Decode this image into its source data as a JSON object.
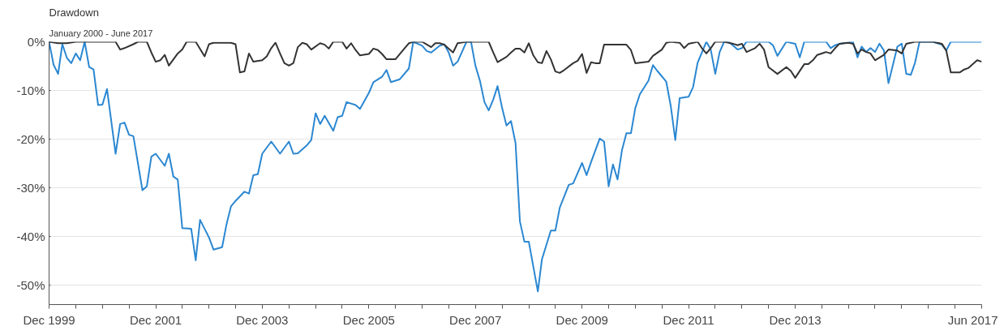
{
  "chart_data": {
    "type": "line",
    "title": "Drawdown",
    "subtitle": "January 2000 - June 2017",
    "xlim": [
      "1999-12",
      "2017-06"
    ],
    "xticks": [
      {
        "value": "1999-12",
        "label": "Dec 1999"
      },
      {
        "value": "2000-06",
        "label": null
      },
      {
        "value": "2000-12",
        "label": null
      },
      {
        "value": "2001-06",
        "label": null
      },
      {
        "value": "2001-12",
        "label": "Dec 2001"
      },
      {
        "value": "2002-06",
        "label": null
      },
      {
        "value": "2002-12",
        "label": null
      },
      {
        "value": "2003-06",
        "label": null
      },
      {
        "value": "2003-12",
        "label": "Dec 2003"
      },
      {
        "value": "2004-06",
        "label": null
      },
      {
        "value": "2004-12",
        "label": null
      },
      {
        "value": "2005-06",
        "label": null
      },
      {
        "value": "2005-12",
        "label": "Dec 2005"
      },
      {
        "value": "2006-06",
        "label": null
      },
      {
        "value": "2006-12",
        "label": null
      },
      {
        "value": "2007-06",
        "label": null
      },
      {
        "value": "2007-12",
        "label": "Dec 2007"
      },
      {
        "value": "2008-06",
        "label": null
      },
      {
        "value": "2008-12",
        "label": null
      },
      {
        "value": "2009-06",
        "label": null
      },
      {
        "value": "2009-12",
        "label": "Dec 2009"
      },
      {
        "value": "2010-06",
        "label": null
      },
      {
        "value": "2010-12",
        "label": null
      },
      {
        "value": "2011-06",
        "label": null
      },
      {
        "value": "2011-12",
        "label": "Dec 2011"
      },
      {
        "value": "2012-06",
        "label": null
      },
      {
        "value": "2012-12",
        "label": null
      },
      {
        "value": "2013-06",
        "label": null
      },
      {
        "value": "2013-12",
        "label": "Dec 2013"
      },
      {
        "value": "2014-06",
        "label": null
      },
      {
        "value": "2014-12",
        "label": null
      },
      {
        "value": "2015-06",
        "label": null
      },
      {
        "value": "2015-12",
        "label": null
      },
      {
        "value": "2016-06",
        "label": null
      },
      {
        "value": "2016-12",
        "label": null
      },
      {
        "value": "2017-06",
        "label": "Jun 2017"
      }
    ],
    "ylim": [
      -54,
      0
    ],
    "yticks": [
      {
        "value": 0,
        "label": "0%"
      },
      {
        "value": -10,
        "label": "-10%"
      },
      {
        "value": -20,
        "label": "-20%"
      },
      {
        "value": -30,
        "label": "-30%"
      },
      {
        "value": -40,
        "label": "-40%"
      },
      {
        "value": -50,
        "label": "-50%"
      }
    ],
    "grid": "y",
    "marker": "none",
    "line_style": "solid",
    "series": [
      {
        "color": "#2b87d1",
        "x": [
          "1999-12",
          "2000-01",
          "2000-02",
          "2000-03",
          "2000-04",
          "2000-05",
          "2000-06",
          "2000-07",
          "2000-08",
          "2000-09",
          "2000-10",
          "2000-11",
          "2000-12",
          "2001-01",
          "2001-03",
          "2001-04",
          "2001-05",
          "2001-06",
          "2001-07",
          "2001-09",
          "2001-10",
          "2001-11",
          "2001-12",
          "2002-02",
          "2002-03",
          "2002-04",
          "2002-05",
          "2002-06",
          "2002-08",
          "2002-09",
          "2002-10",
          "2002-12",
          "2003-01",
          "2003-03",
          "2003-04",
          "2003-05",
          "2003-06",
          "2003-08",
          "2003-09",
          "2003-10",
          "2003-11",
          "2003-12",
          "2004-02",
          "2004-04",
          "2004-06",
          "2004-07",
          "2004-08",
          "2004-10",
          "2004-11",
          "2004-12",
          "2005-01",
          "2005-02",
          "2005-04",
          "2005-05",
          "2005-06",
          "2005-07",
          "2005-09",
          "2005-10",
          "2005-12",
          "2006-01",
          "2006-03",
          "2006-04",
          "2006-05",
          "2006-07",
          "2006-09",
          "2006-10",
          "2006-12",
          "2007-01",
          "2007-02",
          "2007-04",
          "2007-05",
          "2007-06",
          "2007-07",
          "2007-08",
          "2007-10",
          "2007-11",
          "2007-12",
          "2008-01",
          "2008-02",
          "2008-03",
          "2008-04",
          "2008-05",
          "2008-06",
          "2008-07",
          "2008-08",
          "2008-09",
          "2008-10",
          "2008-11",
          "2008-12",
          "2009-02",
          "2009-03",
          "2009-05",
          "2009-06",
          "2009-07",
          "2009-09",
          "2009-10",
          "2009-12",
          "2010-01",
          "2010-02",
          "2010-04",
          "2010-05",
          "2010-06",
          "2010-07",
          "2010-08",
          "2010-09",
          "2010-10",
          "2010-11",
          "2010-12",
          "2011-01",
          "2011-03",
          "2011-04",
          "2011-05",
          "2011-07",
          "2011-08",
          "2011-09",
          "2011-10",
          "2011-12",
          "2012-01",
          "2012-02",
          "2012-04",
          "2012-05",
          "2012-06",
          "2012-07",
          "2012-08",
          "2012-09",
          "2012-11",
          "2012-12",
          "2013-01",
          "2013-03",
          "2013-05",
          "2013-06",
          "2013-07",
          "2013-08",
          "2013-10",
          "2013-12",
          "2014-01",
          "2014-02",
          "2014-07",
          "2014-08",
          "2014-09",
          "2014-10",
          "2015-01",
          "2015-02",
          "2015-03",
          "2015-04",
          "2015-05",
          "2015-06",
          "2015-07",
          "2015-08",
          "2015-09",
          "2015-11",
          "2015-12",
          "2016-01",
          "2016-02",
          "2016-03",
          "2016-04",
          "2016-07",
          "2016-09",
          "2016-10",
          "2016-11",
          "2017-06"
        ],
        "values": [
          0,
          -4.7,
          -6.6,
          -0.5,
          -3.3,
          -4.4,
          -2.4,
          -3.8,
          0,
          -5.2,
          -5.7,
          -13.0,
          -12.9,
          -9.7,
          -23.0,
          -16.9,
          -16.6,
          -19.1,
          -19.4,
          -30.5,
          -29.7,
          -23.6,
          -23.0,
          -25.5,
          -23.0,
          -27.7,
          -28.3,
          -38.3,
          -38.4,
          -44.9,
          -36.6,
          -40.2,
          -42.7,
          -42.2,
          -37.4,
          -33.8,
          -32.7,
          -30.8,
          -31.2,
          -27.4,
          -27.2,
          -23.0,
          -20.5,
          -23.0,
          -20.5,
          -23.0,
          -22.9,
          -21.3,
          -20.2,
          -14.7,
          -16.9,
          -15.2,
          -18.3,
          -15.5,
          -15.2,
          -12.4,
          -13.0,
          -13.8,
          -10.5,
          -8.3,
          -7.2,
          -5.8,
          -8.3,
          -7.7,
          -5.5,
          0,
          -0.8,
          -1.9,
          -2.2,
          -0.8,
          -0.5,
          -2.2,
          -4.9,
          -4.1,
          0,
          0,
          -4.9,
          -8.0,
          -12.4,
          -14.1,
          -11.9,
          -9.1,
          -13.6,
          -17.2,
          -16.3,
          -20.8,
          -36.9,
          -41.1,
          -41.1,
          -51.3,
          -44.7,
          -38.8,
          -38.8,
          -34.1,
          -29.4,
          -29.1,
          -24.9,
          -27.4,
          -24.7,
          -19.9,
          -20.5,
          -29.7,
          -25.2,
          -28.3,
          -22.2,
          -18.8,
          -18.8,
          -13.6,
          -10.8,
          -8.0,
          -4.8,
          -6.0,
          -8.2,
          -13.2,
          -20.2,
          -11.6,
          -11.3,
          -9.3,
          -4.3,
          0,
          -1.6,
          -6.6,
          -2.1,
          0,
          0,
          -1.6,
          -1.3,
          0,
          0,
          0,
          0,
          -0.7,
          -2.9,
          0,
          -0.4,
          -3.2,
          0,
          0,
          -1.3,
          -0.7,
          -0.4,
          0,
          -3.2,
          -1.0,
          -2.1,
          -1.3,
          -2.1,
          -0.4,
          -1.8,
          -8.5,
          -1.0,
          -0.4,
          -6.6,
          -6.8,
          -4.3,
          0,
          0,
          -0.6,
          -1.8,
          0,
          0
        ]
      },
      {
        "color": "#333333",
        "x": [
          "1999-12",
          "2000-02",
          "2000-04",
          "2000-06",
          "2001-03",
          "2001-04",
          "2001-05",
          "2001-07",
          "2001-08",
          "2001-10",
          "2001-11",
          "2001-12",
          "2002-01",
          "2002-02",
          "2002-03",
          "2002-05",
          "2002-06",
          "2002-07",
          "2002-09",
          "2002-11",
          "2002-12",
          "2003-01",
          "2003-05",
          "2003-06",
          "2003-07",
          "2003-08",
          "2003-09",
          "2003-10",
          "2003-12",
          "2004-01",
          "2004-02",
          "2004-03",
          "2004-04",
          "2004-05",
          "2004-06",
          "2004-07",
          "2004-08",
          "2004-09",
          "2004-10",
          "2004-11",
          "2005-01",
          "2005-02",
          "2005-03",
          "2005-04",
          "2005-06",
          "2005-07",
          "2005-08",
          "2005-09",
          "2005-10",
          "2005-12",
          "2006-01",
          "2006-02",
          "2006-03",
          "2006-04",
          "2006-06",
          "2006-08",
          "2006-09",
          "2006-10",
          "2006-12",
          "2007-02",
          "2007-03",
          "2007-04",
          "2007-05",
          "2007-07",
          "2007-08",
          "2007-10",
          "2008-03",
          "2008-04",
          "2008-05",
          "2008-07",
          "2008-08",
          "2008-09",
          "2008-10",
          "2008-11",
          "2008-12",
          "2009-01",
          "2009-02",
          "2009-03",
          "2009-04",
          "2009-05",
          "2009-06",
          "2009-07",
          "2009-08",
          "2009-10",
          "2009-11",
          "2009-12",
          "2010-01",
          "2010-02",
          "2010-03",
          "2010-04",
          "2010-05",
          "2010-08",
          "2010-10",
          "2010-11",
          "2010-12",
          "2011-03",
          "2011-04",
          "2011-06",
          "2011-07",
          "2011-08",
          "2011-10",
          "2011-11",
          "2011-12",
          "2012-02",
          "2012-03",
          "2012-04",
          "2012-05",
          "2012-06",
          "2012-08",
          "2012-10",
          "2012-11",
          "2012-12",
          "2013-01",
          "2013-03",
          "2013-04",
          "2013-05",
          "2013-06",
          "2013-08",
          "2013-10",
          "2013-11",
          "2013-12",
          "2014-02",
          "2014-03",
          "2014-04",
          "2014-05",
          "2014-07",
          "2014-08",
          "2014-09",
          "2014-10",
          "2014-12",
          "2015-01",
          "2015-02",
          "2015-03",
          "2015-04",
          "2015-05",
          "2015-06",
          "2015-08",
          "2015-09",
          "2015-11",
          "2015-12",
          "2016-01",
          "2016-03",
          "2016-07",
          "2016-09",
          "2016-10",
          "2016-11",
          "2017-01",
          "2017-02",
          "2017-03",
          "2017-04",
          "2017-05",
          "2017-06"
        ],
        "values": [
          0,
          -0.3,
          -0.3,
          0,
          0,
          -1.6,
          -1.3,
          -0.5,
          0,
          0,
          -2.2,
          -4.1,
          -3.8,
          -2.7,
          -4.9,
          -2.4,
          -1.6,
          0,
          0,
          -3.0,
          -0.5,
          -0.2,
          -0.2,
          -0.5,
          -6.3,
          -6.1,
          -2.4,
          -4.1,
          -3.8,
          -3.0,
          -1.3,
          -0.2,
          -2.4,
          -4.4,
          -4.9,
          -4.4,
          -1.1,
          -0.2,
          -0.5,
          -1.6,
          -0.3,
          -0.6,
          -1.4,
          0,
          0,
          -1.4,
          -0.3,
          -1.7,
          -2.8,
          -2.5,
          -1.4,
          -1.7,
          -2.5,
          -3.6,
          -3.6,
          -1.4,
          -0.3,
          0,
          0,
          -1.1,
          -0.3,
          -0.3,
          -0.6,
          -2.2,
          -0.3,
          0,
          0,
          -2.2,
          -4.2,
          -3.1,
          -2.2,
          -1.4,
          -1.4,
          -2.2,
          -0.3,
          -2.8,
          -4.2,
          -4.4,
          -1.9,
          -3.6,
          -6.1,
          -6.4,
          -5.8,
          -4.4,
          -3.9,
          -2.5,
          -6.4,
          -4.2,
          -4.4,
          -4.4,
          -0.6,
          -0.6,
          -0.6,
          -1.7,
          -4.4,
          -4.1,
          -2.9,
          -1.6,
          -0.2,
          0,
          -0.2,
          -1.3,
          -0.4,
          0,
          -1.3,
          -2.4,
          -1.3,
          0,
          0,
          -0.4,
          -0.7,
          -0.4,
          -2.1,
          -1.3,
          -0.4,
          -1.6,
          -5.2,
          -6.6,
          -5.2,
          -6.0,
          -7.4,
          -4.6,
          -4.6,
          -3.8,
          -2.7,
          -2.1,
          -2.4,
          -1.3,
          -0.4,
          -0.2,
          -0.4,
          -2.4,
          -1.6,
          -2.1,
          -2.4,
          -3.8,
          -2.7,
          -1.6,
          -1.8,
          -2.4,
          -0.4,
          0,
          0,
          -0.4,
          -1.8,
          -6.3,
          -6.3,
          -5.7,
          -5.4,
          -4.6,
          -3.8,
          -4.1
        ]
      }
    ]
  }
}
